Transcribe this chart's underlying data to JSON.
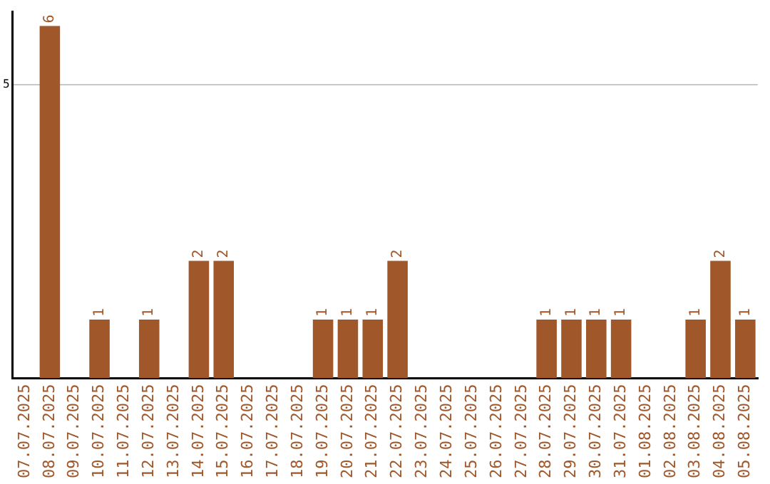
{
  "chart_data": {
    "type": "bar",
    "categories": [
      "07.07.2025",
      "08.07.2025",
      "09.07.2025",
      "10.07.2025",
      "11.07.2025",
      "12.07.2025",
      "13.07.2025",
      "14.07.2025",
      "15.07.2025",
      "16.07.2025",
      "17.07.2025",
      "18.07.2025",
      "19.07.2025",
      "20.07.2025",
      "21.07.2025",
      "22.07.2025",
      "23.07.2025",
      "24.07.2025",
      "25.07.2025",
      "26.07.2025",
      "27.07.2025",
      "28.07.2025",
      "29.07.2025",
      "30.07.2025",
      "31.07.2025",
      "01.08.2025",
      "02.08.2025",
      "03.08.2025",
      "04.08.2025",
      "05.08.2025"
    ],
    "values": [
      0,
      6,
      0,
      1,
      0,
      1,
      0,
      2,
      2,
      0,
      0,
      0,
      1,
      1,
      1,
      2,
      0,
      0,
      0,
      0,
      0,
      1,
      1,
      1,
      1,
      0,
      0,
      1,
      2,
      1
    ],
    "value_labels": [
      null,
      "6",
      null,
      "1",
      null,
      "1",
      null,
      "2",
      "2",
      null,
      null,
      null,
      "1",
      "1",
      "1",
      "2",
      null,
      null,
      null,
      null,
      null,
      "1",
      "1",
      "1",
      "1",
      null,
      null,
      "1",
      "2",
      "1"
    ],
    "color": "#a0572a",
    "ylim": [
      0,
      6.25
    ],
    "yticks": [
      5
    ],
    "grid": "y",
    "legend": false
  }
}
